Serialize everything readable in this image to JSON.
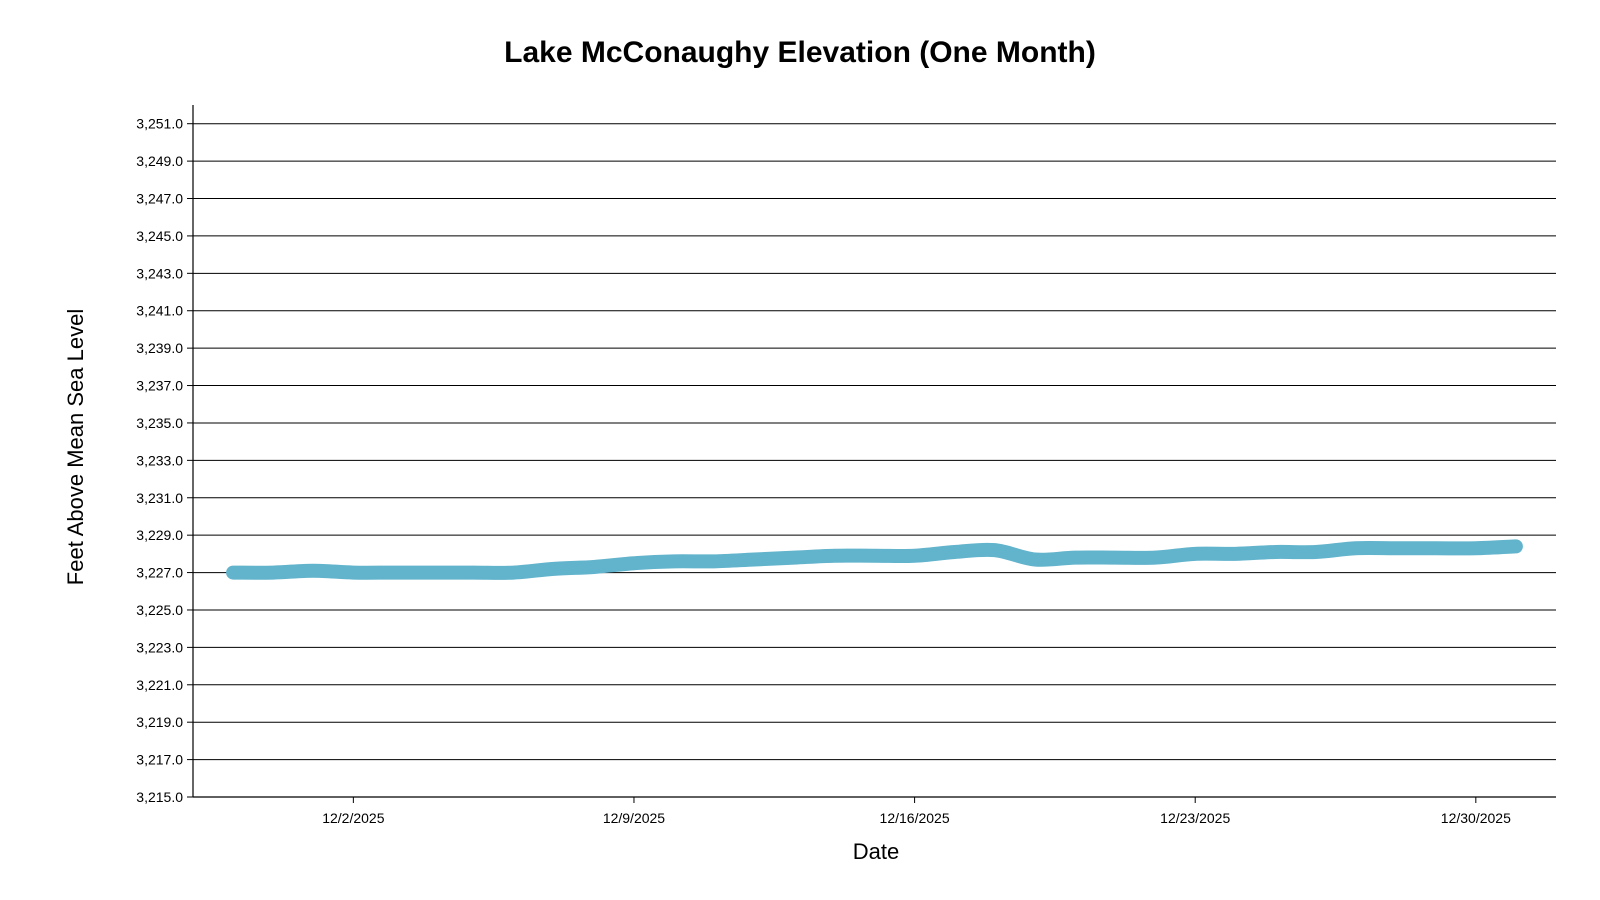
{
  "chart_data": {
    "type": "line",
    "title": "Lake McConaughy Elevation (One Month)",
    "xlabel": "Date",
    "ylabel": "Feet Above Mean Sea Level",
    "ylim": [
      3215.0,
      3252.0
    ],
    "y_ticks": [
      3215.0,
      3217.0,
      3219.0,
      3221.0,
      3223.0,
      3225.0,
      3227.0,
      3229.0,
      3231.0,
      3233.0,
      3235.0,
      3237.0,
      3239.0,
      3241.0,
      3243.0,
      3245.0,
      3247.0,
      3249.0,
      3251.0
    ],
    "y_tick_labels": [
      "3,215.0",
      "3,217.0",
      "3,219.0",
      "3,221.0",
      "3,223.0",
      "3,225.0",
      "3,227.0",
      "3,229.0",
      "3,231.0",
      "3,233.0",
      "3,235.0",
      "3,237.0",
      "3,239.0",
      "3,241.0",
      "3,243.0",
      "3,245.0",
      "3,247.0",
      "3,249.0",
      "3,251.0"
    ],
    "x_range_days": [
      -2.0,
      32.0
    ],
    "x_ticks": [
      2,
      9,
      16,
      23,
      30
    ],
    "x_tick_labels": [
      "12/2/2025",
      "12/9/2025",
      "12/16/2025",
      "12/23/2025",
      "12/30/2025"
    ],
    "series": [
      {
        "name": "Elevation",
        "color": "#62b3cc",
        "x": [
          -1,
          0,
          1,
          2,
          3,
          4,
          5,
          6,
          7,
          8,
          9,
          10,
          11,
          12,
          13,
          14,
          15,
          16,
          17,
          18,
          19,
          20,
          21,
          22,
          23,
          24,
          25,
          26,
          27,
          28,
          29,
          30,
          31
        ],
        "values": [
          3227.0,
          3227.0,
          3227.1,
          3227.0,
          3227.0,
          3227.0,
          3227.0,
          3227.0,
          3227.2,
          3227.3,
          3227.5,
          3227.6,
          3227.6,
          3227.7,
          3227.8,
          3227.9,
          3227.9,
          3227.9,
          3228.1,
          3228.2,
          3227.7,
          3227.8,
          3227.8,
          3227.8,
          3228.0,
          3228.0,
          3228.1,
          3228.1,
          3228.3,
          3228.3,
          3228.3,
          3228.3,
          3228.4
        ]
      }
    ]
  }
}
